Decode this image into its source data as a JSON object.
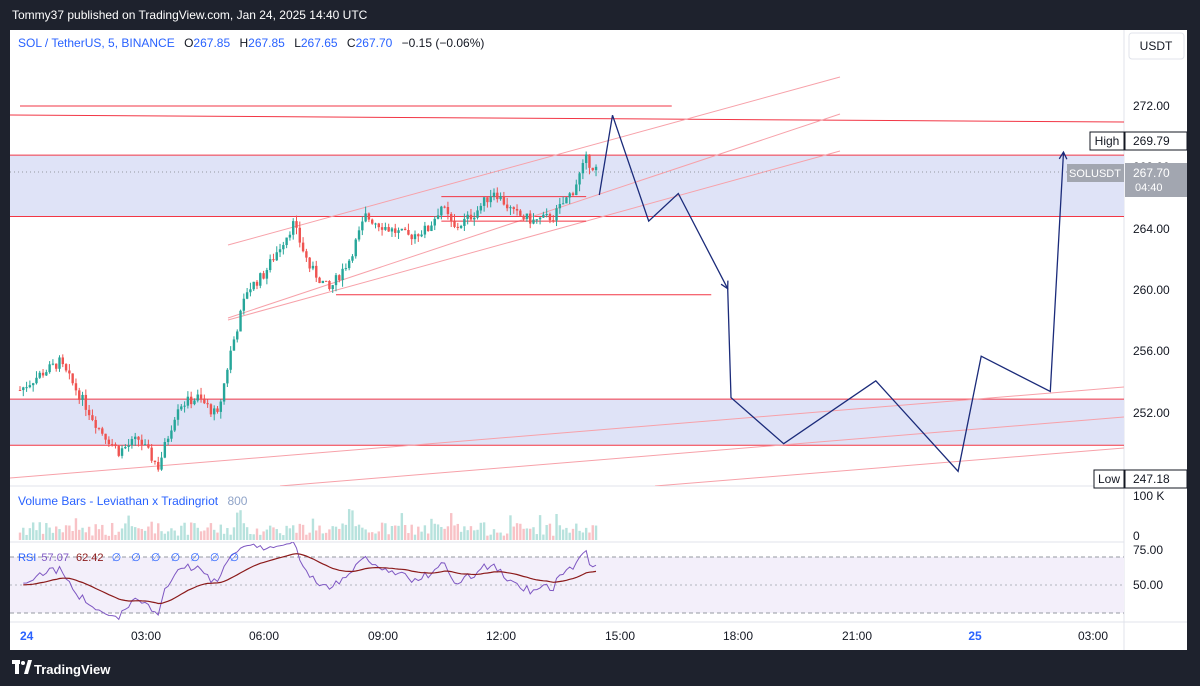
{
  "header": {
    "published_text": "Tommy37 published on TradingView.com, Jan 24, 2025 14:40 UTC"
  },
  "footer": {
    "brand": "TradingView",
    "icon": "tradingview-logo-icon"
  },
  "legend": {
    "symbol": "SOL / TetherUS, 5, BINANCE",
    "o_label": "O",
    "o_value": "267.85",
    "h_label": "H",
    "h_value": "267.85",
    "l_label": "L",
    "l_value": "267.65",
    "c_label": "C",
    "c_value": "267.70",
    "change": "−0.15 (−0.06%)"
  },
  "price_scale": {
    "currency_button": "USDT",
    "ticks": [
      "272.00",
      "268.00",
      "264.00",
      "260.00",
      "256.00",
      "252.00"
    ],
    "high_label": "High",
    "high_value": "269.79",
    "low_label": "Low",
    "low_value": "247.18",
    "symbol_tag": "SOLUSDT",
    "last_price": "267.70",
    "countdown": "04:40"
  },
  "volume_pane": {
    "title": "Volume Bars - Leviathan x Tradingriot",
    "value": "800",
    "scale_top": "100 K",
    "scale_bottom": "0"
  },
  "rsi_pane": {
    "label": "RSI",
    "value1": "57.07",
    "value2": "62.42",
    "extras": [
      "∅",
      "∅",
      "∅",
      "∅",
      "∅",
      "∅",
      "∅"
    ],
    "scale": [
      "75.00",
      "50.00"
    ]
  },
  "time_axis": {
    "ticks": [
      "24",
      "03:00",
      "06:00",
      "09:00",
      "12:00",
      "15:00",
      "18:00",
      "21:00",
      "25",
      "03:00"
    ]
  },
  "colors": {
    "up": "#26a69a",
    "down": "#ef5350",
    "line_red": "#f23645",
    "zone_fill": "#dfe3f7",
    "projection": "#1b2b7a",
    "rsi": "#7e57c2",
    "rsi_ma": "#8b1a1a"
  },
  "chart_data": {
    "type": "candlestick",
    "symbol": "SOL / TetherUS",
    "interval": "5",
    "ylim": [
      246.5,
      273.5
    ],
    "session_start": "Jan 24, 00:00",
    "bar_minutes": 5,
    "path_points": [
      [
        "00:00",
        253.5
      ],
      [
        "00:30",
        254.5
      ],
      [
        "01:00",
        255.3
      ],
      [
        "01:30",
        253.2
      ],
      [
        "02:00",
        251.0
      ],
      [
        "02:30",
        249.5
      ],
      [
        "03:00",
        250.3
      ],
      [
        "03:30",
        248.5
      ],
      [
        "04:00",
        252.5
      ],
      [
        "04:30",
        253.0
      ],
      [
        "05:00",
        251.8
      ],
      [
        "05:20",
        256.0
      ],
      [
        "05:45",
        260.0
      ],
      [
        "06:10",
        261.0
      ],
      [
        "06:30",
        262.5
      ],
      [
        "06:55",
        264.3
      ],
      [
        "07:20",
        261.5
      ],
      [
        "07:50",
        260.0
      ],
      [
        "08:20",
        262.0
      ],
      [
        "08:45",
        264.8
      ],
      [
        "09:20",
        264.0
      ],
      [
        "09:50",
        263.5
      ],
      [
        "10:20",
        264.0
      ],
      [
        "10:40",
        265.5
      ],
      [
        "11:00",
        264.0
      ],
      [
        "11:30",
        265.0
      ],
      [
        "12:00",
        266.5
      ],
      [
        "12:30",
        265.0
      ],
      [
        "13:00",
        264.5
      ],
      [
        "13:30",
        264.8
      ],
      [
        "14:00",
        266.5
      ],
      [
        "14:20",
        268.5
      ],
      [
        "14:40",
        267.7
      ]
    ],
    "zones": [
      {
        "from": 264.8,
        "to": 268.8
      },
      {
        "from": 249.9,
        "to": 252.9
      }
    ],
    "horizontal_lines": [
      {
        "price": 272.0,
        "from": "00:00",
        "to": "16:30"
      },
      {
        "price": 259.7,
        "from": "08:00",
        "to": "17:30"
      },
      {
        "price": 266.1,
        "from": "10:40",
        "to": "14:20"
      },
      {
        "price": 264.5,
        "from": "10:40",
        "to": "14:20"
      }
    ],
    "projection_path": [
      [
        "14:40",
        266.2
      ],
      [
        "15:00",
        271.4
      ],
      [
        "15:55",
        264.5
      ],
      [
        "16:40",
        266.3
      ],
      [
        "17:55",
        260.1
      ],
      [
        "18:00",
        253.0
      ],
      [
        "19:20",
        250.0
      ],
      [
        "21:40",
        254.1
      ],
      [
        "23:45",
        248.2
      ],
      [
        "24:20",
        255.7
      ],
      [
        "26:05",
        253.4
      ],
      [
        "26:25",
        269.0
      ]
    ]
  }
}
